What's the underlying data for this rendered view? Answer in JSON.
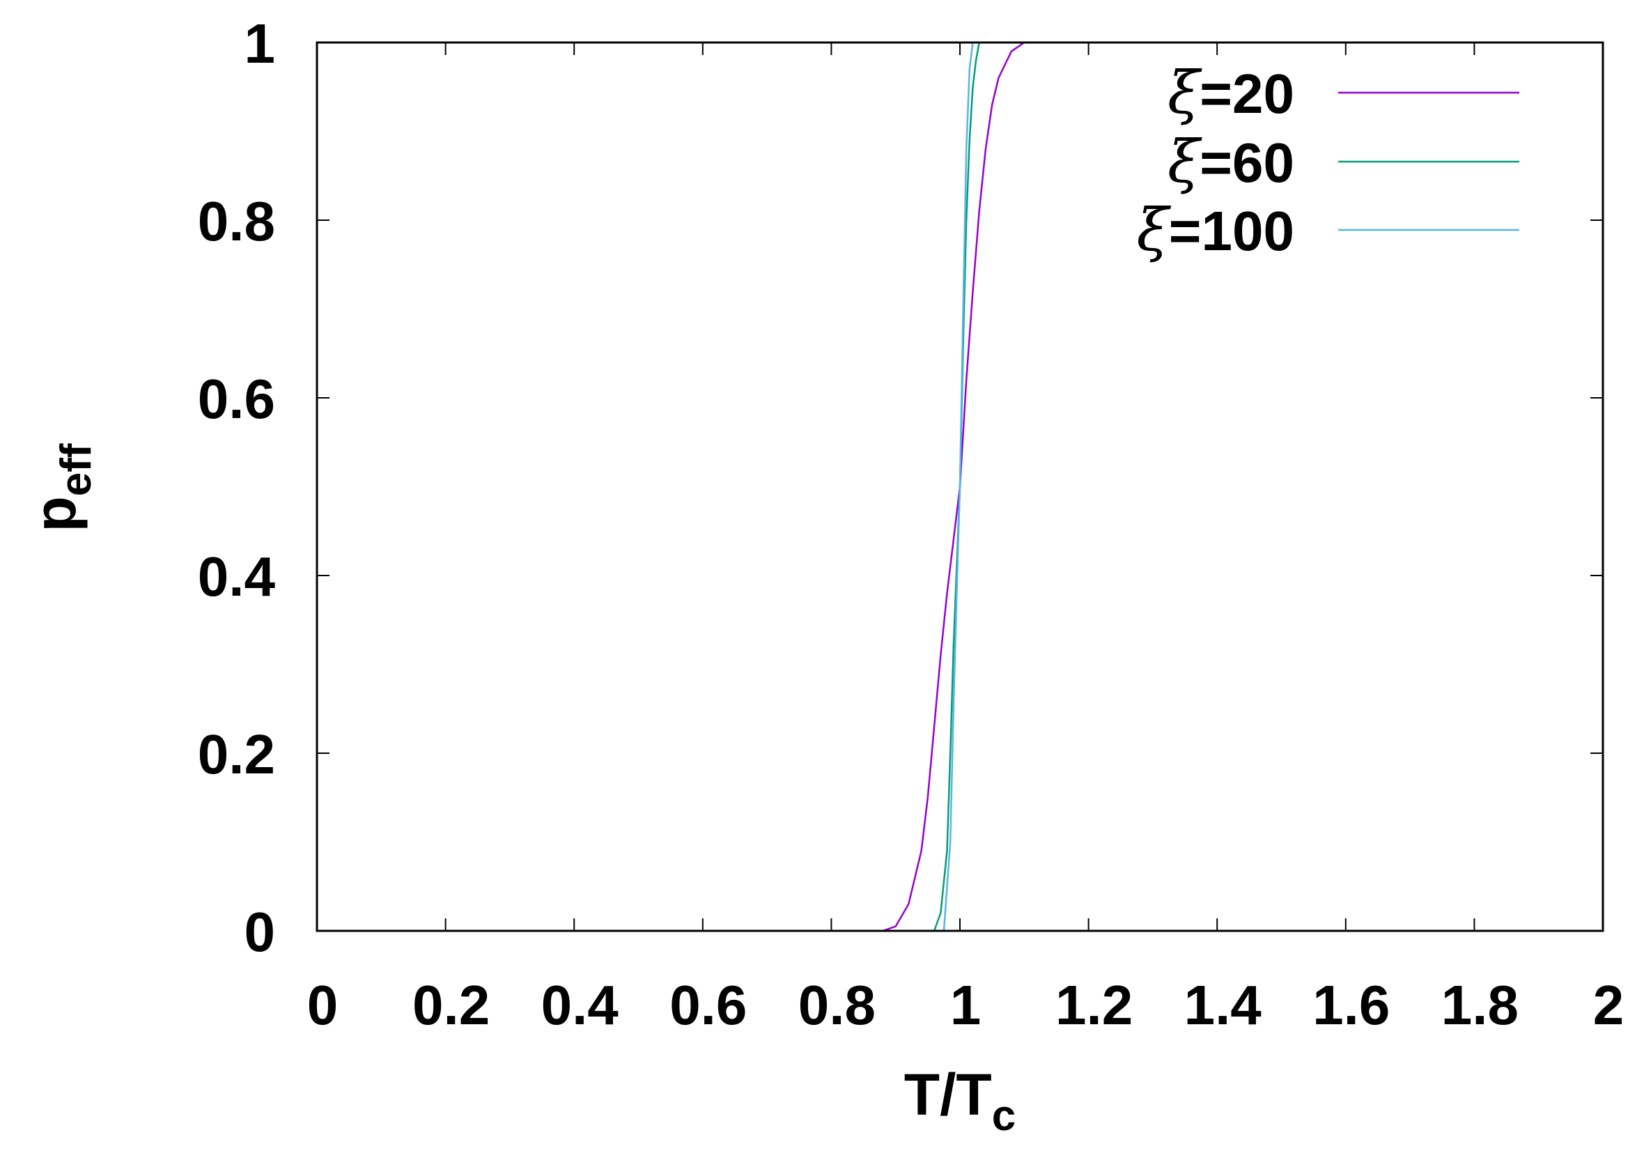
{
  "chart_data": {
    "type": "line",
    "xlabel_main": "T/T",
    "xlabel_sub": "c",
    "ylabel_main": "p",
    "ylabel_sub": "eff",
    "xlim": [
      0,
      2
    ],
    "ylim": [
      0,
      1
    ],
    "x_ticks": [
      "0",
      "0.2",
      "0.4",
      "0.6",
      "0.8",
      "1",
      "1.2",
      "1.4",
      "1.6",
      "1.8",
      "2"
    ],
    "y_ticks": [
      "0",
      "0.2",
      "0.4",
      "0.6",
      "0.8",
      "1"
    ],
    "grid": false,
    "legend_position": "top-right",
    "series": [
      {
        "name": "ξ=20",
        "symbol": "ξ",
        "suffix": "=20",
        "color": "#9400d3",
        "points": [
          [
            0.8,
            0
          ],
          [
            0.88,
            0
          ],
          [
            0.9,
            0.005
          ],
          [
            0.92,
            0.03
          ],
          [
            0.94,
            0.09
          ],
          [
            0.95,
            0.15
          ],
          [
            0.96,
            0.23
          ],
          [
            0.97,
            0.31
          ],
          [
            0.98,
            0.38
          ],
          [
            0.99,
            0.44
          ],
          [
            1.0,
            0.5
          ],
          [
            1.01,
            0.62
          ],
          [
            1.02,
            0.72
          ],
          [
            1.03,
            0.81
          ],
          [
            1.04,
            0.88
          ],
          [
            1.05,
            0.93
          ],
          [
            1.06,
            0.96
          ],
          [
            1.08,
            0.99
          ],
          [
            1.1,
            1.0
          ],
          [
            1.2,
            1.0
          ]
        ]
      },
      {
        "name": "ξ=60",
        "symbol": "ξ",
        "suffix": "=60",
        "color": "#009e73",
        "points": [
          [
            0.8,
            0
          ],
          [
            0.96,
            0
          ],
          [
            0.97,
            0.02
          ],
          [
            0.98,
            0.09
          ],
          [
            0.985,
            0.2
          ],
          [
            0.99,
            0.32
          ],
          [
            1.0,
            0.5
          ],
          [
            1.005,
            0.66
          ],
          [
            1.01,
            0.8
          ],
          [
            1.015,
            0.89
          ],
          [
            1.02,
            0.95
          ],
          [
            1.025,
            0.98
          ],
          [
            1.03,
            1.0
          ],
          [
            1.2,
            1.0
          ]
        ]
      },
      {
        "name": "ξ=100",
        "symbol": "ξ",
        "suffix": "=100",
        "color": "#56b4e9",
        "points": [
          [
            0.8,
            0
          ],
          [
            0.975,
            0
          ],
          [
            0.985,
            0.1
          ],
          [
            0.99,
            0.25
          ],
          [
            0.995,
            0.38
          ],
          [
            1.0,
            0.5
          ],
          [
            1.005,
            0.7
          ],
          [
            1.01,
            0.88
          ],
          [
            1.015,
            0.97
          ],
          [
            1.02,
            1.0
          ],
          [
            1.2,
            1.0
          ]
        ]
      }
    ]
  }
}
